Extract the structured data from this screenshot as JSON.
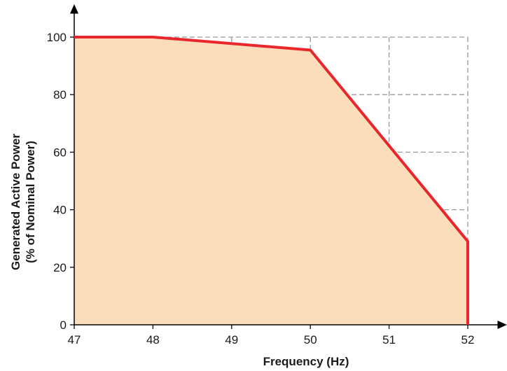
{
  "chart_data": {
    "type": "area",
    "title": "",
    "xlabel": "Frequency (Hz)",
    "ylabel": [
      "Generated Active Power",
      "(% of Nominal Power)"
    ],
    "xlim": [
      47,
      52
    ],
    "ylim": [
      0,
      100
    ],
    "x_ticks": [
      "47",
      "48",
      "49",
      "50",
      "51",
      "52"
    ],
    "y_ticks": [
      "0",
      "20",
      "40",
      "60",
      "80",
      "100"
    ],
    "grid": true,
    "legend": "none",
    "series": [
      {
        "x": [
          47,
          48,
          50,
          52,
          52
        ],
        "y": [
          100,
          100,
          95.5,
          29,
          0
        ]
      }
    ],
    "colors": {
      "line": "#e8262b",
      "fill": "#fbdcbb",
      "grid": "#9a9a9a",
      "axis": "#000000"
    }
  }
}
